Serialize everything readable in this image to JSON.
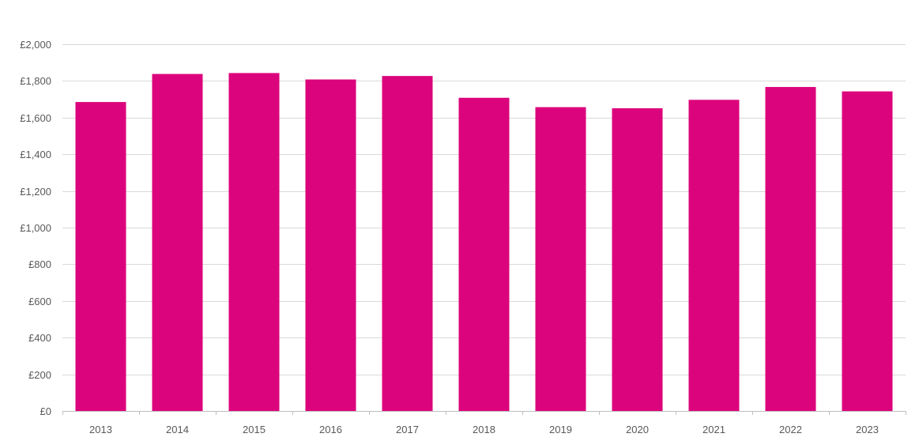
{
  "chart_data": {
    "type": "bar",
    "title": "",
    "xlabel": "",
    "ylabel": "",
    "categories": [
      "2013",
      "2014",
      "2015",
      "2016",
      "2017",
      "2018",
      "2019",
      "2020",
      "2021",
      "2022",
      "2023"
    ],
    "values": [
      1685,
      1838,
      1843,
      1808,
      1827,
      1708,
      1657,
      1651,
      1697,
      1767,
      1743
    ],
    "ylim": [
      0,
      2000
    ],
    "yticks": [
      0,
      200,
      400,
      600,
      800,
      1000,
      1200,
      1400,
      1600,
      1800,
      2000
    ],
    "ytick_labels": [
      "£0",
      "£200",
      "£400",
      "£600",
      "£800",
      "£1,000",
      "£1,200",
      "£1,400",
      "£1,600",
      "£1,800",
      "£2,000"
    ],
    "grid": true,
    "legend": "none",
    "bar_color": "#dc047c"
  }
}
